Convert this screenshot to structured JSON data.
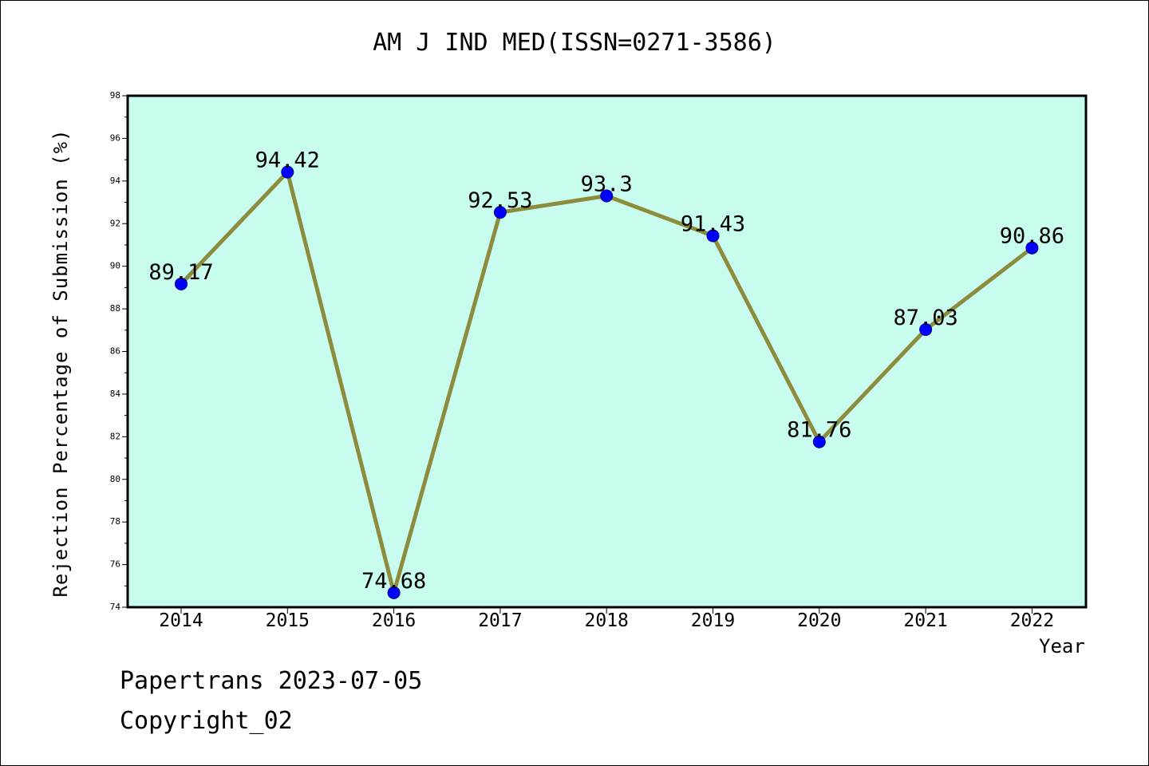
{
  "chart_data": {
    "type": "line",
    "title": "AM J IND MED(ISSN=0271-3586)",
    "xlabel": "Year",
    "ylabel": "Rejection Percentage of Submission (%)",
    "categories": [
      "2014",
      "2015",
      "2016",
      "2017",
      "2018",
      "2019",
      "2020",
      "2021",
      "2022"
    ],
    "values": [
      89.17,
      94.42,
      74.68,
      92.53,
      93.3,
      91.43,
      81.76,
      87.03,
      90.86
    ],
    "data_labels": [
      "89.17",
      "94.42",
      "74.68",
      "92.53",
      "93.3",
      "91.43",
      "81.76",
      "87.03",
      "90.86"
    ],
    "ylim": [
      74,
      98
    ],
    "yticks": [
      74,
      76,
      78,
      80,
      82,
      84,
      86,
      88,
      90,
      92,
      94,
      96,
      98
    ],
    "grid": false,
    "colors": {
      "plot_background": "#c8fcee",
      "line": "#8c8c3c",
      "marker": "#0000ff"
    }
  },
  "footer": {
    "line1": "Papertrans 2023-07-05",
    "line2": "Copyright_02"
  }
}
